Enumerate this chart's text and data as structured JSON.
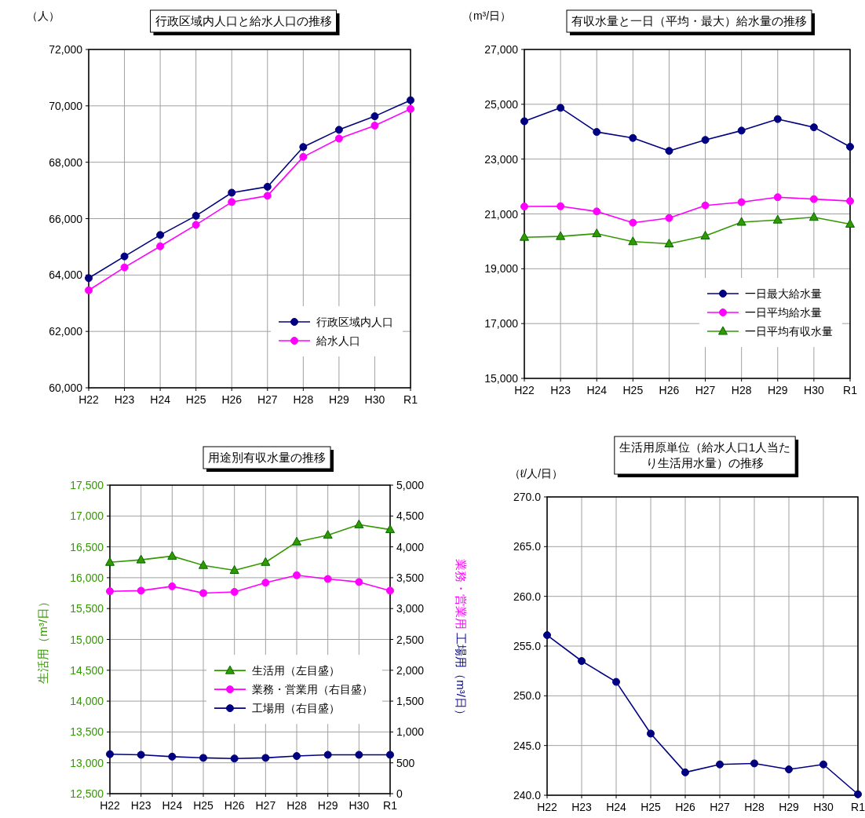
{
  "chart_data": [
    {
      "type": "line",
      "title": "行政区域内人口と給水人口の推移",
      "ylabel": "（人）",
      "categories": [
        "H22",
        "H23",
        "H24",
        "H25",
        "H26",
        "H27",
        "H28",
        "H29",
        "H30",
        "R1"
      ],
      "marker": "circle",
      "grid": true,
      "legend": "bottom right",
      "ylim": [
        60000,
        72000
      ],
      "yticks": [
        {
          "value": 60000,
          "label": "60,000"
        },
        {
          "value": 62000,
          "label": "62,000"
        },
        {
          "value": 64000,
          "label": "64,000"
        },
        {
          "value": 66000,
          "label": "66,000"
        },
        {
          "value": 68000,
          "label": "68,000"
        },
        {
          "value": 70000,
          "label": "70,000"
        },
        {
          "value": 72000,
          "label": "72,000"
        }
      ],
      "series": [
        {
          "name": "行政区域内人口",
          "color": "#000080",
          "values": [
            63890,
            64660,
            65420,
            66100,
            66920,
            67130,
            68540,
            69150,
            69630,
            70200
          ]
        },
        {
          "name": "給水人口",
          "color": "#ff00ff",
          "values": [
            63460,
            64270,
            65020,
            65780,
            66590,
            66810,
            68190,
            68840,
            69300,
            69890
          ]
        }
      ]
    },
    {
      "type": "line",
      "title": "有収水量と一日（平均・最大）給水量の推移",
      "ylabel": "（m³/日）",
      "categories": [
        "H22",
        "H23",
        "H24",
        "H25",
        "H26",
        "H27",
        "H28",
        "H29",
        "H30",
        "R1"
      ],
      "marker": "circle",
      "grid": true,
      "legend": "bottom right",
      "ylim": [
        15000,
        27000
      ],
      "yticks": [
        {
          "value": 15000,
          "label": "15,000"
        },
        {
          "value": 17000,
          "label": "17,000"
        },
        {
          "value": 19000,
          "label": "19,000"
        },
        {
          "value": 21000,
          "label": "21,000"
        },
        {
          "value": 23000,
          "label": "23,000"
        },
        {
          "value": 25000,
          "label": "25,000"
        },
        {
          "value": 27000,
          "label": "27,000"
        }
      ],
      "series": [
        {
          "name": "一日最大給水量",
          "color": "#000080",
          "values": [
            24380,
            24870,
            23990,
            23770,
            23300,
            23700,
            24040,
            24460,
            24160,
            23450
          ]
        },
        {
          "name": "一日平均給水量",
          "color": "#ff00ff",
          "values": [
            21270,
            21280,
            21090,
            20680,
            20850,
            21310,
            21430,
            21610,
            21540,
            21470
          ]
        },
        {
          "name": "一日平均有収水量",
          "color": "#339900",
          "marker": "triangle",
          "values": [
            20150,
            20180,
            20280,
            19990,
            19910,
            20200,
            20700,
            20780,
            20880,
            20630
          ]
        }
      ]
    },
    {
      "type": "line",
      "title": "用途別有収水量の推移",
      "ylabel": "生活用（m³/日）",
      "y2label": "業務・営業用 工場用（m³/日）",
      "categories": [
        "H22",
        "H23",
        "H24",
        "H25",
        "H26",
        "H27",
        "H28",
        "H29",
        "H30",
        "R1"
      ],
      "marker": "circle",
      "grid": true,
      "legend": "right",
      "ylim": [
        12500,
        17500
      ],
      "yticks": [
        {
          "value": 12500,
          "label": "12,500"
        },
        {
          "value": 13000,
          "label": "13,000"
        },
        {
          "value": 13500,
          "label": "13,500"
        },
        {
          "value": 14000,
          "label": "14,000"
        },
        {
          "value": 14500,
          "label": "14,500"
        },
        {
          "value": 15000,
          "label": "15,000"
        },
        {
          "value": 15500,
          "label": "15,500"
        },
        {
          "value": 16000,
          "label": "16,000"
        },
        {
          "value": 16500,
          "label": "16,500"
        },
        {
          "value": 17000,
          "label": "17,000"
        },
        {
          "value": 17500,
          "label": "17,500"
        }
      ],
      "y2lim": [
        0,
        5000
      ],
      "y2ticks": [
        0,
        500,
        {
          "value": 1000,
          "label": "1,000"
        },
        {
          "value": 1500,
          "label": "1,500"
        },
        {
          "value": 2000,
          "label": "2,000"
        },
        {
          "value": 2500,
          "label": "2,500"
        },
        {
          "value": 3000,
          "label": "3,000"
        },
        {
          "value": 3500,
          "label": "3,500"
        },
        {
          "value": 4000,
          "label": "4,000"
        },
        {
          "value": 4500,
          "label": "4,500"
        },
        {
          "value": 5000,
          "label": "5,000"
        }
      ],
      "series": [
        {
          "name": "生活用（左目盛）",
          "color": "#339900",
          "marker": "triangle",
          "values": [
            16250,
            16290,
            16350,
            16200,
            16120,
            16250,
            16580,
            16690,
            16860,
            16780
          ]
        },
        {
          "name": "業務・営業用（右目盛）",
          "color": "#ff00ff",
          "axis": "y2",
          "values": [
            3280,
            3290,
            3360,
            3250,
            3270,
            3420,
            3540,
            3480,
            3430,
            3290
          ]
        },
        {
          "name": "工場用（右目盛）",
          "color": "#000080",
          "axis": "y2",
          "values": [
            640,
            630,
            600,
            580,
            570,
            580,
            610,
            630,
            630,
            630
          ]
        }
      ]
    },
    {
      "type": "line",
      "title": "生活用原単位（給水人口1人当たり生活用水量）の推移",
      "ylabel": "（ℓ/人/日）",
      "categories": [
        "H22",
        "H23",
        "H24",
        "H25",
        "H26",
        "H27",
        "H28",
        "H29",
        "H30",
        "R1"
      ],
      "marker": "circle",
      "grid": true,
      "ylim": [
        240,
        270
      ],
      "yticks": [
        {
          "value": 240,
          "label": "240.0"
        },
        {
          "value": 245,
          "label": "245.0"
        },
        {
          "value": 250,
          "label": "250.0"
        },
        {
          "value": 255,
          "label": "255.0"
        },
        {
          "value": 260,
          "label": "260.0"
        },
        {
          "value": 265,
          "label": "265.0"
        },
        {
          "value": 270,
          "label": "270.0"
        }
      ],
      "series": [
        {
          "color": "#000080",
          "values": [
            256.1,
            253.5,
            251.4,
            246.2,
            242.3,
            243.1,
            243.2,
            242.6,
            243.1,
            240.1
          ]
        }
      ]
    }
  ]
}
